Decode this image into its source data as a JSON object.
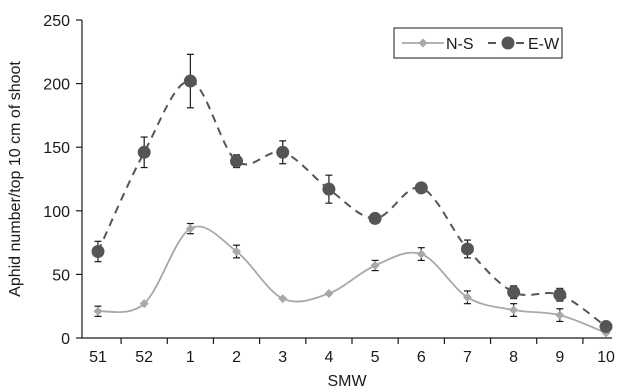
{
  "chart_data": {
    "type": "line",
    "xlabel": "SMW",
    "ylabel": "Aphid number/top 10 cm of shoot",
    "ylim": [
      0,
      250
    ],
    "yticks": [
      0,
      50,
      100,
      150,
      200,
      250
    ],
    "categories": [
      "51",
      "52",
      "1",
      "2",
      "3",
      "4",
      "5",
      "6",
      "7",
      "8",
      "9",
      "10"
    ],
    "grid": false,
    "legend_position": "top-right",
    "series": [
      {
        "name": "N-S",
        "style": "solid",
        "marker": "diamond",
        "color": "#a8a8a8",
        "values": [
          21,
          27,
          86,
          68,
          31,
          35,
          57,
          66,
          32,
          22,
          18,
          4
        ],
        "errors": [
          4,
          0,
          4,
          5,
          0,
          0,
          4,
          5,
          5,
          5,
          5,
          0
        ]
      },
      {
        "name": "E-W",
        "style": "dashed",
        "marker": "circle",
        "color": "#555555",
        "values": [
          68,
          146,
          202,
          139,
          146,
          117,
          94,
          118,
          70,
          36,
          34,
          9
        ],
        "errors": [
          8,
          12,
          21,
          5,
          9,
          11,
          0,
          0,
          7,
          5,
          5,
          0
        ]
      }
    ]
  }
}
